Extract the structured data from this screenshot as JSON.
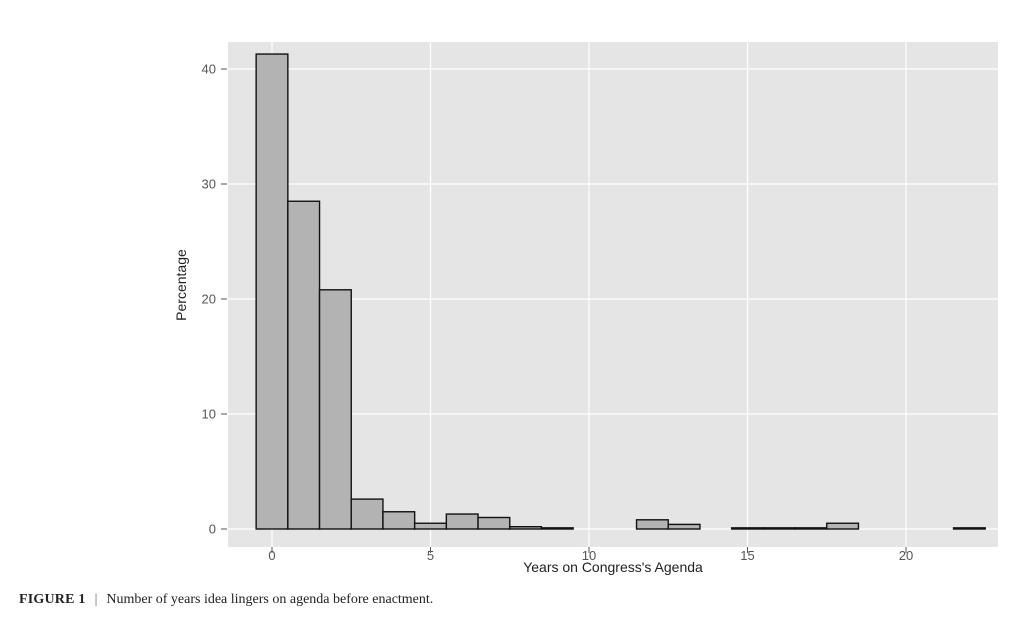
{
  "chart_data": {
    "type": "bar",
    "title": "",
    "xlabel": "Years on Congress's Agenda",
    "ylabel": "Percentage",
    "xlim": [
      -1,
      23
    ],
    "ylim": [
      0,
      42.5
    ],
    "xticks": [
      0,
      5,
      10,
      15,
      20
    ],
    "yticks": [
      0,
      10,
      20,
      30,
      40
    ],
    "grid": true,
    "bin_width": 1,
    "x": [
      0,
      1,
      2,
      3,
      4,
      5,
      6,
      7,
      8,
      9,
      12,
      13,
      15,
      16,
      17,
      18,
      22
    ],
    "values": [
      41.3,
      28.5,
      20.8,
      2.6,
      1.5,
      0.5,
      1.3,
      1.0,
      0.2,
      0.1,
      0.8,
      0.4,
      0.1,
      0.1,
      0.1,
      0.5,
      0.1
    ],
    "colors": {
      "panel": "#e5e5e5",
      "grid": "#ffffff",
      "bar_fill": "#b3b3b3",
      "bar_stroke": "#111111"
    }
  },
  "caption": {
    "label": "FIGURE 1",
    "separator": "|",
    "text": "Number of years idea lingers on agenda before enactment."
  }
}
